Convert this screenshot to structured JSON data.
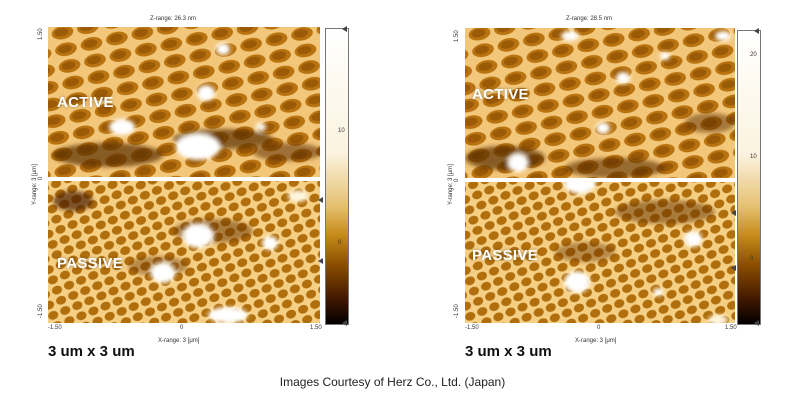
{
  "left_panel": {
    "z_range": "Z-range: 26.3 nm",
    "y_axis_label": "Y-range: 3 [μm]",
    "y_tick_top": "1.50",
    "y_tick_mid": "0",
    "y_tick_bottom": "-1.50",
    "x_tick_left": "-1.50",
    "x_tick_mid": "0",
    "x_tick_right": "1.50",
    "x_axis_label": "X-range: 3 [μm]",
    "colorbar_ticks": [
      "10",
      "0"
    ],
    "active_label": "ACTIVE",
    "passive_label": "PASSIVE",
    "size_label": "3 um x 3 um"
  },
  "right_panel": {
    "z_range": "Z-range: 28.5 nm",
    "y_axis_label": "Y-range: 3 [μm]",
    "y_tick_top": "1.50",
    "y_tick_mid": "0",
    "y_tick_bottom": "-1.50",
    "x_tick_left": "-1.50",
    "x_tick_mid": "0",
    "x_tick_right": "1.50",
    "x_axis_label": "X-range: 3 [μm]",
    "colorbar_ticks": [
      "20",
      "10",
      "0"
    ],
    "active_label": "ACTIVE",
    "passive_label": "PASSIVE",
    "size_label": "3 um x 3 um"
  },
  "credit": "Images Courtesy of Herz Co., Ltd. (Japan)",
  "colors": {
    "afm_base": "#b8770f",
    "afm_dark": "#5a2a00",
    "afm_light": "#ffffff"
  }
}
